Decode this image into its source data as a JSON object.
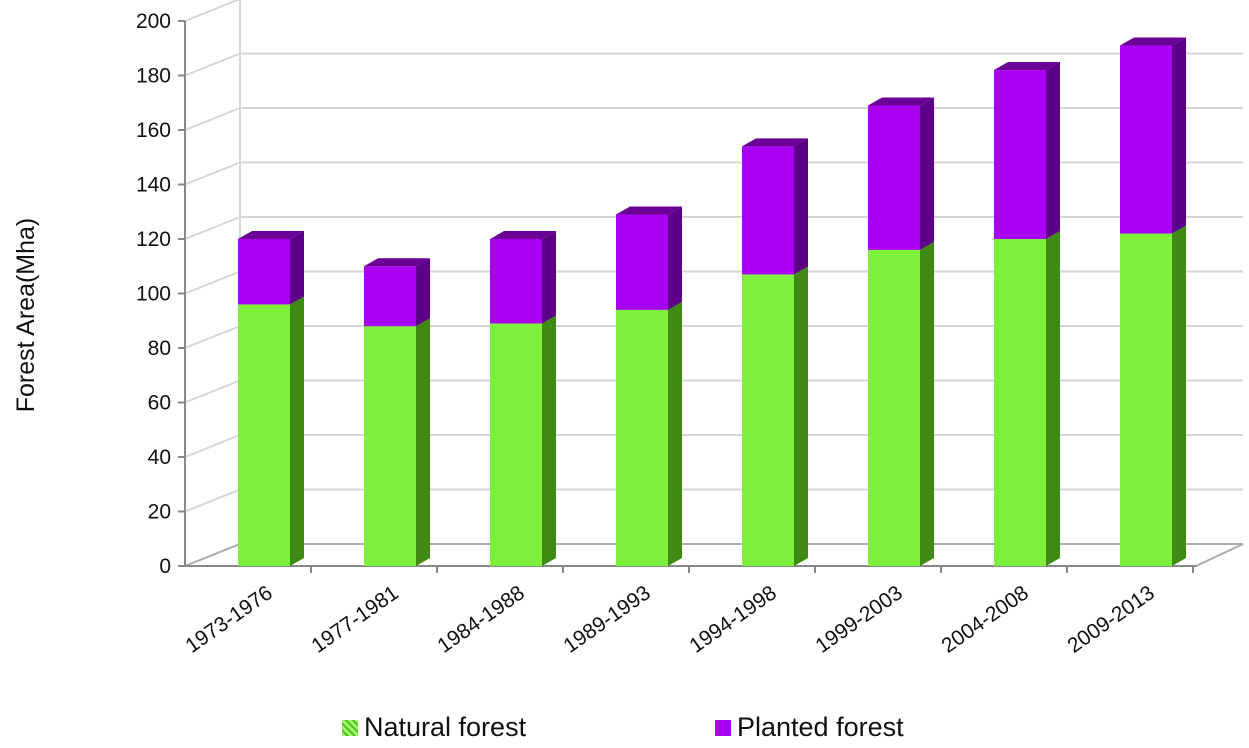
{
  "chart_data": {
    "type": "bar",
    "stacked": true,
    "three_d": true,
    "ylabel": "Forest Area(Mha)",
    "xlabel": "",
    "ylim": [
      0,
      200
    ],
    "yticks": [
      0,
      20,
      40,
      60,
      80,
      100,
      120,
      140,
      160,
      180,
      200
    ],
    "grid": true,
    "legend_position": "bottom",
    "categories": [
      "1973-1976",
      "1977-1981",
      "1984-1988",
      "1989-1993",
      "1994-1998",
      "1999-2003",
      "2004-2008",
      "2009-2013"
    ],
    "series": [
      {
        "name": "Natural forest",
        "color": "#7ef03c",
        "values": [
          96,
          88,
          89,
          94,
          107,
          116,
          120,
          122
        ]
      },
      {
        "name": "Planted forest",
        "color": "#a800f0",
        "values": [
          24,
          22,
          31,
          35,
          47,
          53,
          62,
          69
        ]
      }
    ]
  }
}
